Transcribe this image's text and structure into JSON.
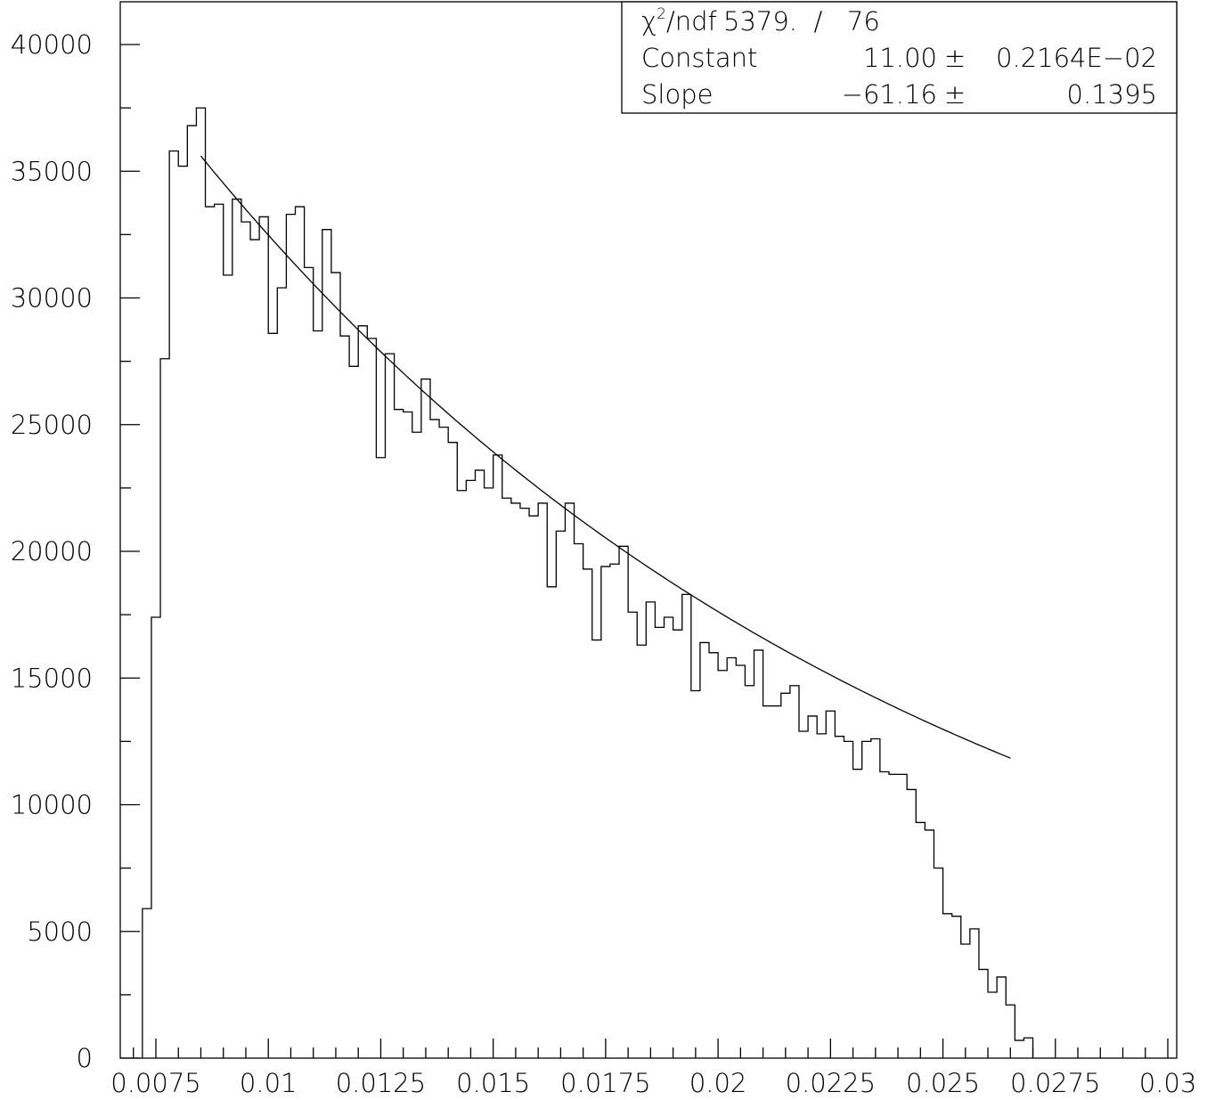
{
  "chart_data": {
    "type": "histogram",
    "title": "",
    "xlabel": "",
    "ylabel": "",
    "xlim": [
      0.007,
      0.0305
    ],
    "ylim": [
      0,
      42000
    ],
    "x_ticks": [
      {
        "value": 0.0075,
        "label": "0.0075"
      },
      {
        "value": 0.01,
        "label": "0.01"
      },
      {
        "value": 0.0125,
        "label": "0.0125"
      },
      {
        "value": 0.015,
        "label": "0.015"
      },
      {
        "value": 0.0175,
        "label": "0.0175"
      },
      {
        "value": 0.02,
        "label": "0.02"
      },
      {
        "value": 0.0225,
        "label": "0.0225"
      },
      {
        "value": 0.025,
        "label": "0.025"
      },
      {
        "value": 0.0275,
        "label": "0.0275"
      },
      {
        "value": 0.03,
        "label": "0.03"
      }
    ],
    "y_ticks": [
      {
        "value": 0,
        "label": "0"
      },
      {
        "value": 5000,
        "label": "5000"
      },
      {
        "value": 10000,
        "label": "10000"
      },
      {
        "value": 15000,
        "label": "15000"
      },
      {
        "value": 20000,
        "label": "20000"
      },
      {
        "value": 25000,
        "label": "25000"
      },
      {
        "value": 30000,
        "label": "30000"
      },
      {
        "value": 35000,
        "label": "35000"
      },
      {
        "value": 40000,
        "label": "40000"
      }
    ],
    "bin_start": 0.0072,
    "bin_width": 0.0002,
    "counts": [
      5900,
      17400,
      27600,
      35800,
      35200,
      36800,
      37500,
      33600,
      33700,
      30900,
      33900,
      33000,
      32300,
      33200,
      28600,
      30400,
      33300,
      33600,
      31200,
      28700,
      32700,
      31000,
      28500,
      27300,
      28900,
      28400,
      23700,
      27800,
      25600,
      25500,
      24700,
      26800,
      25200,
      24900,
      24300,
      22400,
      22800,
      23200,
      22500,
      23800,
      22100,
      21900,
      21700,
      21400,
      21900,
      18600,
      20800,
      21900,
      20300,
      19300,
      16500,
      19400,
      19500,
      20200,
      17600,
      16300,
      18000,
      17000,
      17400,
      16900,
      18300,
      14500,
      16400,
      16000,
      15300,
      15800,
      15500,
      14700,
      16100,
      13900,
      13900,
      14400,
      14700,
      12900,
      13500,
      12800,
      13700,
      12700,
      12500,
      11400,
      12500,
      12600,
      11300,
      11200,
      11200,
      10600,
      9300,
      9000,
      7500,
      5700,
      5600,
      4500,
      5100,
      3500,
      2600,
      3200,
      2100,
      700,
      800
    ],
    "fit": {
      "type": "exponential",
      "constant": 11.0,
      "slope": -61.16,
      "x_range": [
        0.0085,
        0.0265
      ]
    },
    "stats_box": {
      "rows": [
        {
          "label": "/ndf",
          "value": "5379.  /   76",
          "error": ""
        },
        {
          "label": "Constant",
          "value": "11.00",
          "error": "0.2164E-02"
        },
        {
          "label": "Slope",
          "value": "-61.16",
          "error": "0.1395"
        }
      ],
      "chi_symbol": "χ",
      "chi_superscript": "2",
      "pm_symbol": "±"
    }
  }
}
